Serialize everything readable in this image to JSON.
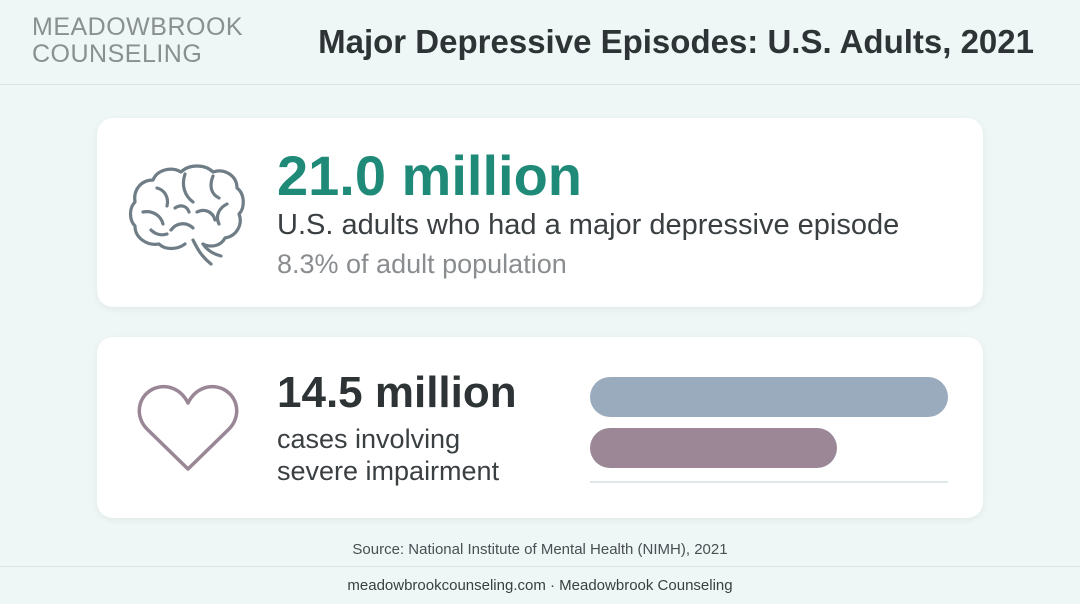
{
  "header": {
    "brand_line1": "MEADOWBROOK",
    "brand_line2": "COUNSELING",
    "title": "Major Depressive Episodes: U.S. Adults, 2021"
  },
  "card1": {
    "icon": "brain-icon",
    "number": "21.0 million",
    "description": "U.S. adults who had a major depressive episode",
    "subtext": "8.3% of adult population"
  },
  "card2": {
    "icon": "heart-icon",
    "number": "14.5 million",
    "description_line1": "cases involving",
    "description_line2": "severe impairment",
    "bars": [
      {
        "value": 21.0,
        "color": "#9aabbd"
      },
      {
        "value": 14.5,
        "color": "#9c8797"
      }
    ]
  },
  "source": "Source: National Institute of Mental Health (NIMH), 2021",
  "footer": "meadowbrookcounseling.com · Meadowbrook Counseling",
  "colors": {
    "accent": "#1f8a78",
    "background": "#eef6f6",
    "text": "#2e3436",
    "icon": "#6f7d86",
    "heart": "#9a8796"
  }
}
